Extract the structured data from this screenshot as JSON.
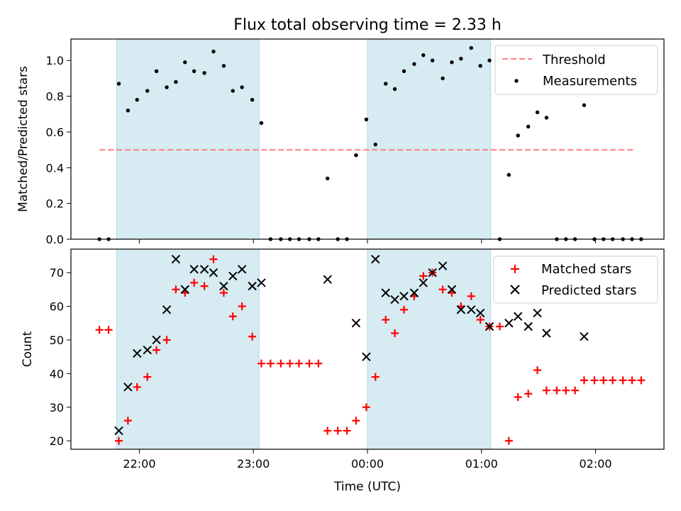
{
  "title": "Flux total observing time = 2.33 h",
  "colors": {
    "shade": "#add8e6",
    "threshold": "#ff8080",
    "measurement": "#000000",
    "matched": "#ff0000",
    "predicted": "#000000"
  },
  "chart_data": [
    {
      "type": "scatter",
      "xlabel": "",
      "ylabel": "Matched/Predicted stars",
      "xlim": [
        -2.6,
        2.6
      ],
      "ylim": [
        0,
        1.12
      ],
      "grid": false,
      "legend_position": "top-right",
      "shaded_intervals": [
        [
          -2.2,
          -0.95
        ],
        [
          0.0,
          1.08
        ]
      ],
      "y_ticks": [
        "0.0",
        "0.2",
        "0.4",
        "0.6",
        "0.8",
        "1.0"
      ],
      "threshold": {
        "name": "Threshold",
        "value": 0.5,
        "x_range": [
          -2.35,
          2.35
        ]
      },
      "series": [
        {
          "name": "Measurements",
          "marker": "dot",
          "points": [
            [
              -2.35,
              0
            ],
            [
              -2.27,
              0
            ],
            [
              -2.18,
              0.87
            ],
            [
              -2.1,
              0.72
            ],
            [
              -2.02,
              0.78
            ],
            [
              -1.93,
              0.83
            ],
            [
              -1.85,
              0.94
            ],
            [
              -1.76,
              0.85
            ],
            [
              -1.68,
              0.88
            ],
            [
              -1.6,
              0.99
            ],
            [
              -1.52,
              0.94
            ],
            [
              -1.43,
              0.93
            ],
            [
              -1.35,
              1.05
            ],
            [
              -1.26,
              0.97
            ],
            [
              -1.18,
              0.83
            ],
            [
              -1.1,
              0.85
            ],
            [
              -1.01,
              0.78
            ],
            [
              -0.93,
              0.65
            ],
            [
              -0.85,
              0
            ],
            [
              -0.76,
              0
            ],
            [
              -0.68,
              0
            ],
            [
              -0.6,
              0
            ],
            [
              -0.51,
              0
            ],
            [
              -0.43,
              0
            ],
            [
              -0.35,
              0.34
            ],
            [
              -0.26,
              0
            ],
            [
              -0.18,
              0
            ],
            [
              -0.1,
              0.47
            ],
            [
              -0.01,
              0.67
            ],
            [
              0.07,
              0.53
            ],
            [
              0.16,
              0.87
            ],
            [
              0.24,
              0.84
            ],
            [
              0.32,
              0.94
            ],
            [
              0.41,
              0.98
            ],
            [
              0.49,
              1.03
            ],
            [
              0.57,
              1.0
            ],
            [
              0.66,
              0.9
            ],
            [
              0.74,
              0.99
            ],
            [
              0.82,
              1.01
            ],
            [
              0.91,
              1.07
            ],
            [
              0.99,
              0.97
            ],
            [
              1.07,
              1.0
            ],
            [
              1.16,
              0
            ],
            [
              1.24,
              0.36
            ],
            [
              1.32,
              0.58
            ],
            [
              1.41,
              0.63
            ],
            [
              1.49,
              0.71
            ],
            [
              1.57,
              0.68
            ],
            [
              1.66,
              0
            ],
            [
              1.74,
              0
            ],
            [
              1.82,
              0
            ],
            [
              1.9,
              0.75
            ],
            [
              1.99,
              0
            ],
            [
              2.07,
              0
            ],
            [
              2.15,
              0
            ],
            [
              2.24,
              0
            ],
            [
              2.32,
              0
            ],
            [
              2.4,
              0
            ]
          ]
        }
      ]
    },
    {
      "type": "scatter",
      "xlabel": "Time (UTC)",
      "ylabel": "Count",
      "xlim": [
        -2.6,
        2.6
      ],
      "ylim": [
        17.5,
        77
      ],
      "grid": false,
      "legend_position": "top-right",
      "shaded_intervals": [
        [
          -2.2,
          -0.95
        ],
        [
          0.0,
          1.08
        ]
      ],
      "y_ticks": [
        "20",
        "30",
        "40",
        "50",
        "60",
        "70"
      ],
      "x_ticks": [
        {
          "value": -2,
          "label": "22:00"
        },
        {
          "value": -1,
          "label": "23:00"
        },
        {
          "value": 0,
          "label": "00:00"
        },
        {
          "value": 1,
          "label": "01:00"
        },
        {
          "value": 2,
          "label": "02:00"
        }
      ],
      "series": [
        {
          "name": "Matched stars",
          "marker": "plus",
          "points": [
            [
              -2.35,
              53
            ],
            [
              -2.27,
              53
            ],
            [
              -2.18,
              20
            ],
            [
              -2.1,
              26
            ],
            [
              -2.02,
              36
            ],
            [
              -1.93,
              39
            ],
            [
              -1.85,
              47
            ],
            [
              -1.76,
              50
            ],
            [
              -1.68,
              65
            ],
            [
              -1.6,
              64
            ],
            [
              -1.52,
              67
            ],
            [
              -1.43,
              66
            ],
            [
              -1.35,
              74
            ],
            [
              -1.26,
              64
            ],
            [
              -1.18,
              57
            ],
            [
              -1.1,
              60
            ],
            [
              -1.01,
              51
            ],
            [
              -0.93,
              43
            ],
            [
              -0.85,
              43
            ],
            [
              -0.76,
              43
            ],
            [
              -0.68,
              43
            ],
            [
              -0.6,
              43
            ],
            [
              -0.51,
              43
            ],
            [
              -0.43,
              43
            ],
            [
              -0.35,
              23
            ],
            [
              -0.26,
              23
            ],
            [
              -0.18,
              23
            ],
            [
              -0.1,
              26
            ],
            [
              -0.01,
              30
            ],
            [
              0.07,
              39
            ],
            [
              0.16,
              56
            ],
            [
              0.24,
              52
            ],
            [
              0.32,
              59
            ],
            [
              0.41,
              63
            ],
            [
              0.49,
              69
            ],
            [
              0.57,
              70
            ],
            [
              0.66,
              65
            ],
            [
              0.74,
              64
            ],
            [
              0.82,
              60
            ],
            [
              0.91,
              63
            ],
            [
              0.99,
              56
            ],
            [
              1.07,
              54
            ],
            [
              1.16,
              54
            ],
            [
              1.24,
              20
            ],
            [
              1.32,
              33
            ],
            [
              1.41,
              34
            ],
            [
              1.49,
              41
            ],
            [
              1.57,
              35
            ],
            [
              1.66,
              35
            ],
            [
              1.74,
              35
            ],
            [
              1.82,
              35
            ],
            [
              1.9,
              38
            ],
            [
              1.99,
              38
            ],
            [
              2.07,
              38
            ],
            [
              2.15,
              38
            ],
            [
              2.24,
              38
            ],
            [
              2.32,
              38
            ],
            [
              2.4,
              38
            ]
          ]
        },
        {
          "name": "Predicted stars",
          "marker": "x",
          "points": [
            [
              -2.18,
              23
            ],
            [
              -2.1,
              36
            ],
            [
              -2.02,
              46
            ],
            [
              -1.93,
              47
            ],
            [
              -1.85,
              50
            ],
            [
              -1.76,
              59
            ],
            [
              -1.68,
              74
            ],
            [
              -1.6,
              65
            ],
            [
              -1.52,
              71
            ],
            [
              -1.43,
              71
            ],
            [
              -1.35,
              70
            ],
            [
              -1.26,
              66
            ],
            [
              -1.18,
              69
            ],
            [
              -1.1,
              71
            ],
            [
              -1.01,
              66
            ],
            [
              -0.93,
              67
            ],
            [
              -0.35,
              68
            ],
            [
              -0.1,
              55
            ],
            [
              -0.01,
              45
            ],
            [
              0.07,
              74
            ],
            [
              0.16,
              64
            ],
            [
              0.24,
              62
            ],
            [
              0.32,
              63
            ],
            [
              0.41,
              64
            ],
            [
              0.49,
              67
            ],
            [
              0.57,
              70
            ],
            [
              0.66,
              72
            ],
            [
              0.74,
              65
            ],
            [
              0.82,
              59
            ],
            [
              0.91,
              59
            ],
            [
              0.99,
              58
            ],
            [
              1.07,
              54
            ],
            [
              1.24,
              55
            ],
            [
              1.32,
              57
            ],
            [
              1.41,
              54
            ],
            [
              1.49,
              58
            ],
            [
              1.57,
              52
            ],
            [
              1.9,
              51
            ]
          ]
        }
      ]
    }
  ]
}
